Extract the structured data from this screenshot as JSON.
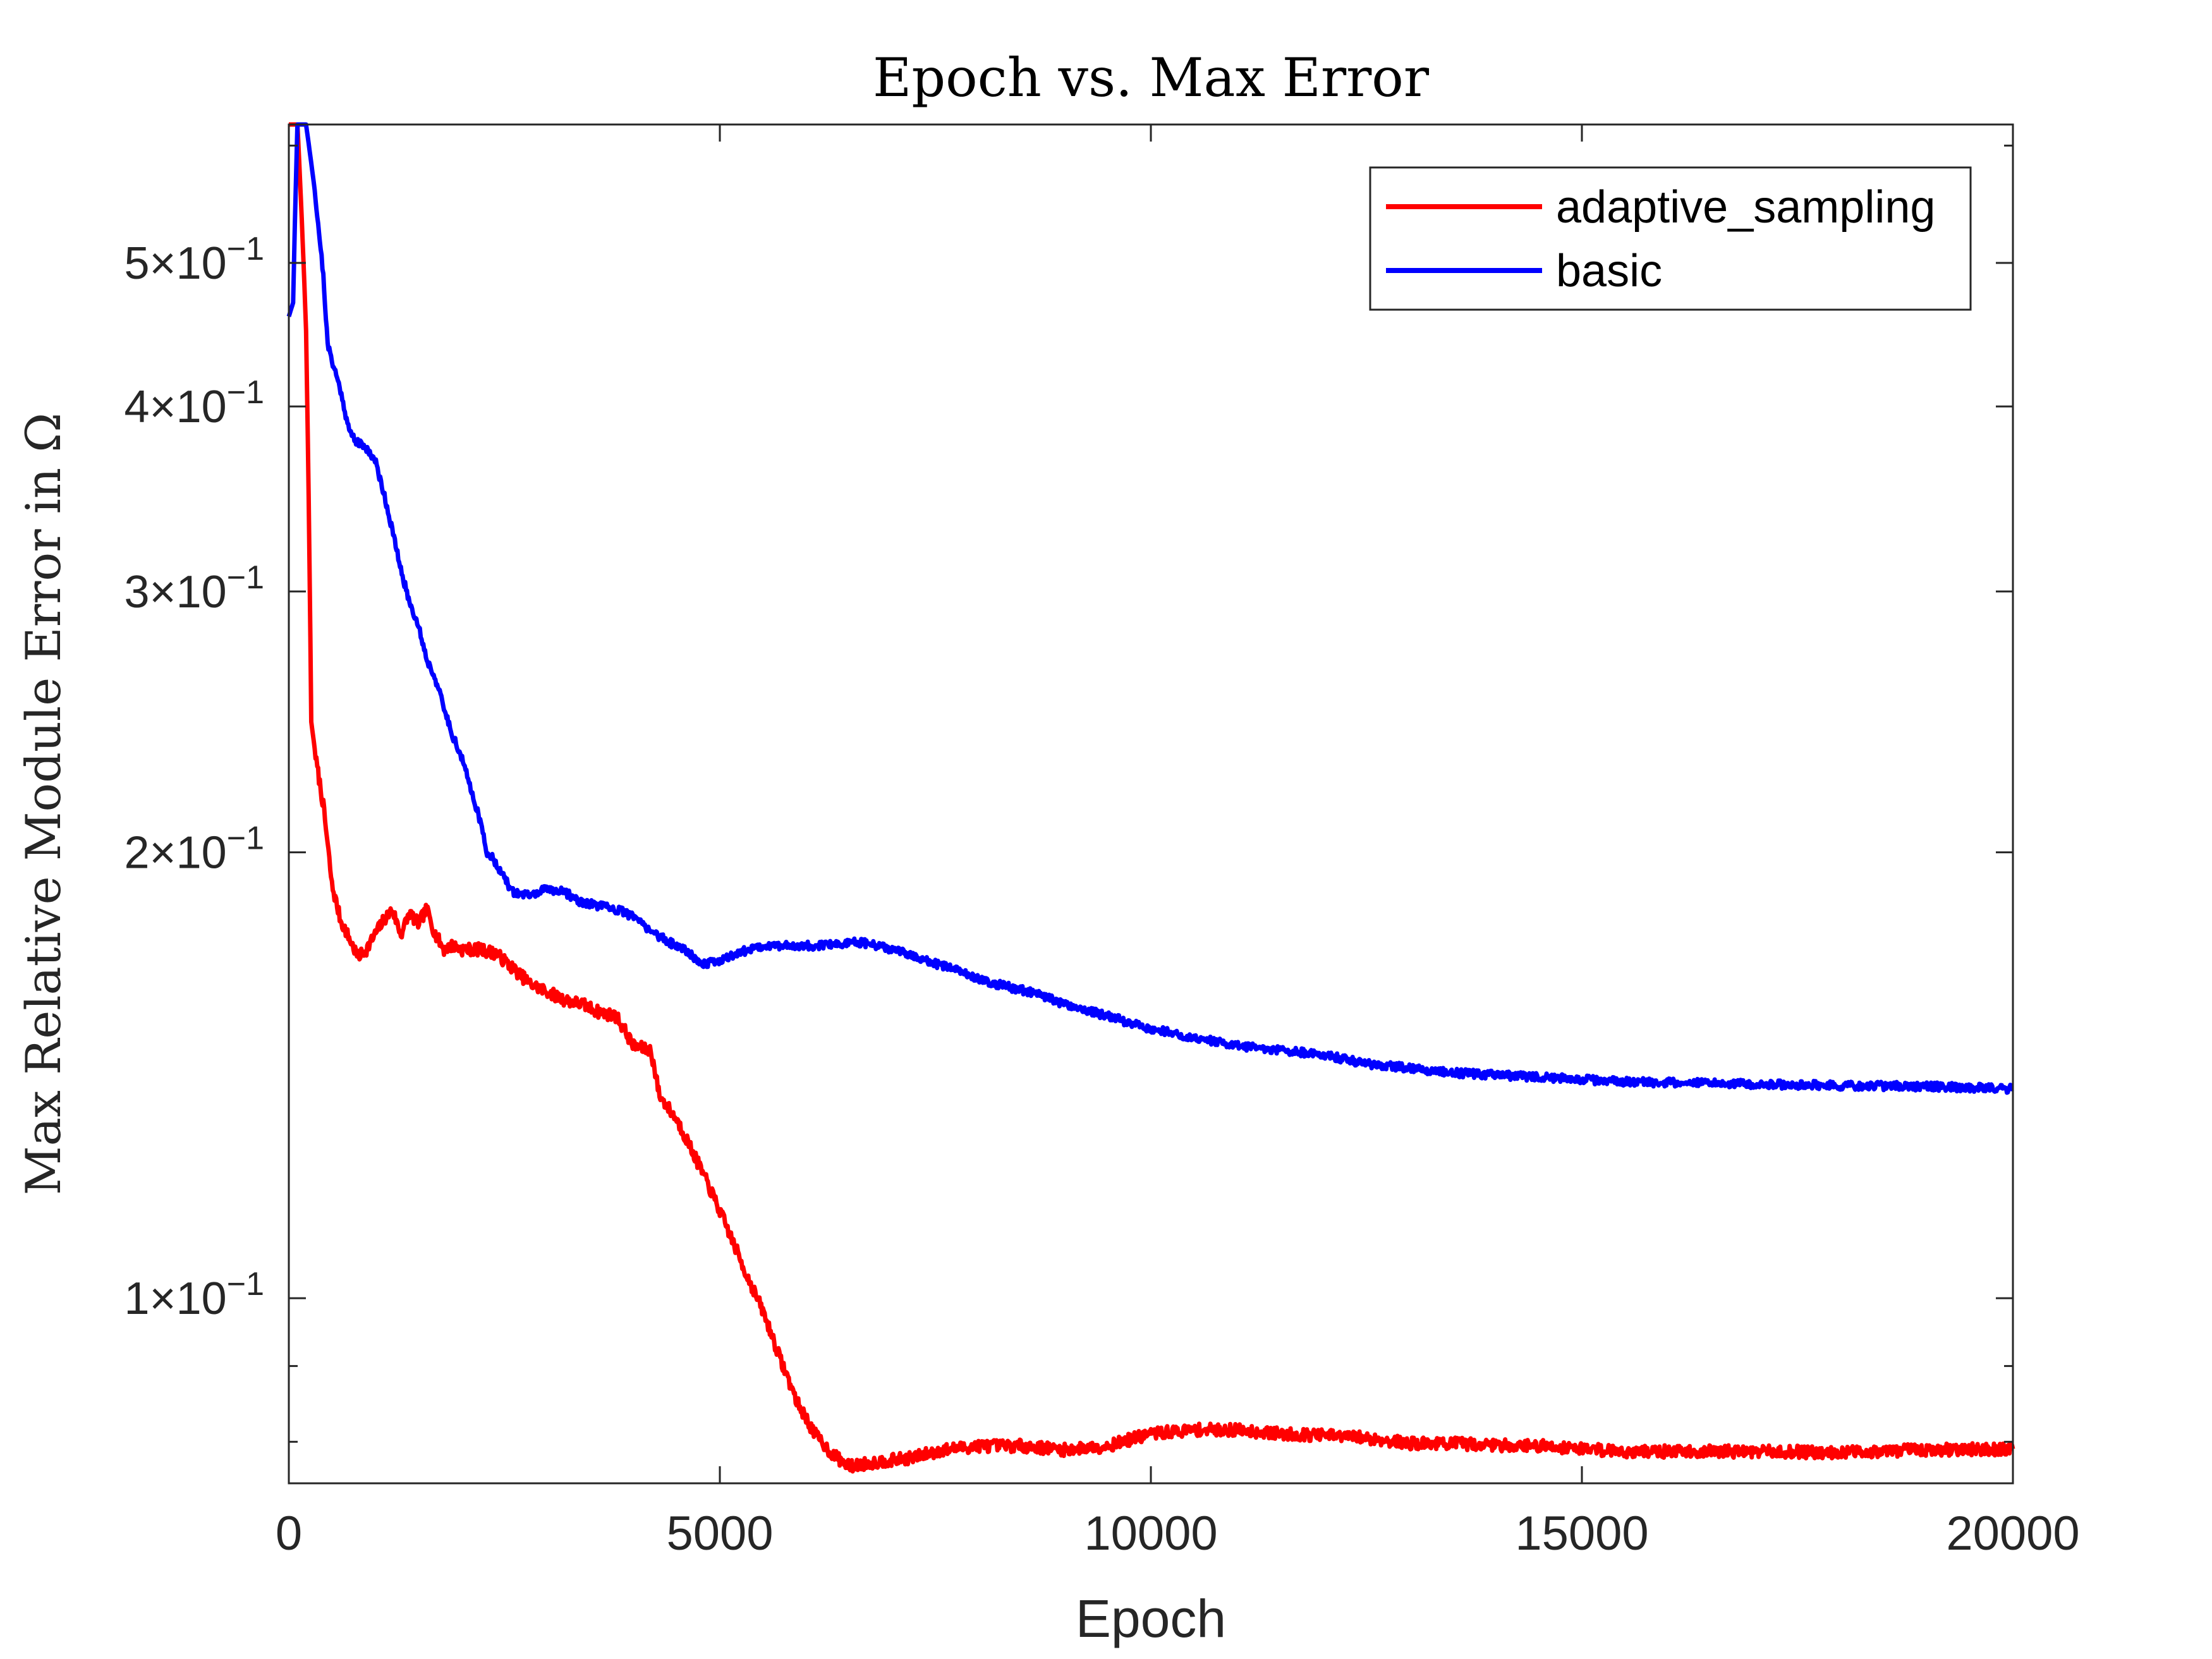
{
  "chart_data": {
    "type": "line",
    "title": "Epoch vs. Max Error",
    "xlabel": "Epoch",
    "ylabel": "Max Relative Module Error in Ω",
    "xlim": [
      0,
      20000
    ],
    "ylim": [
      0.075,
      0.62
    ],
    "yscale": "log",
    "grid": false,
    "legend_position": "top-right",
    "x_ticks": [
      {
        "value": 0,
        "label": "0"
      },
      {
        "value": 5000,
        "label": "5000"
      },
      {
        "value": 10000,
        "label": "10000"
      },
      {
        "value": 15000,
        "label": "15000"
      },
      {
        "value": 20000,
        "label": "20000"
      }
    ],
    "y_ticks": [
      {
        "value": 0.1,
        "mantissa": "1",
        "exp": "−1"
      },
      {
        "value": 0.2,
        "mantissa": "2",
        "exp": "−1"
      },
      {
        "value": 0.3,
        "mantissa": "3",
        "exp": "−1"
      },
      {
        "value": 0.4,
        "mantissa": "4",
        "exp": "−1"
      },
      {
        "value": 0.5,
        "mantissa": "5",
        "exp": "−1"
      }
    ],
    "y_minor_ticks": [
      0.08,
      0.09,
      0.6
    ],
    "series": [
      {
        "name": "adaptive_sampling",
        "color": "#ff0000",
        "noise": 0.006,
        "seed": 7,
        "points": [
          [
            0,
            0.62
          ],
          [
            100,
            0.62
          ],
          [
            200,
            0.45
          ],
          [
            260,
            0.245
          ],
          [
            320,
            0.23
          ],
          [
            400,
            0.215
          ],
          [
            500,
            0.19
          ],
          [
            600,
            0.18
          ],
          [
            700,
            0.175
          ],
          [
            800,
            0.17
          ],
          [
            900,
            0.172
          ],
          [
            1000,
            0.176
          ],
          [
            1100,
            0.18
          ],
          [
            1200,
            0.183
          ],
          [
            1300,
            0.176
          ],
          [
            1400,
            0.182
          ],
          [
            1500,
            0.179
          ],
          [
            1600,
            0.183
          ],
          [
            1700,
            0.176
          ],
          [
            1800,
            0.172
          ],
          [
            1900,
            0.173
          ],
          [
            2000,
            0.172
          ],
          [
            2200,
            0.172
          ],
          [
            2400,
            0.171
          ],
          [
            2600,
            0.167
          ],
          [
            2800,
            0.163
          ],
          [
            3000,
            0.161
          ],
          [
            3200,
            0.159
          ],
          [
            3400,
            0.158
          ],
          [
            3600,
            0.156
          ],
          [
            3800,
            0.155
          ],
          [
            4000,
            0.148
          ],
          [
            4200,
            0.147
          ],
          [
            4300,
            0.137
          ],
          [
            4500,
            0.132
          ],
          [
            4700,
            0.125
          ],
          [
            4900,
            0.118
          ],
          [
            5100,
            0.111
          ],
          [
            5300,
            0.104
          ],
          [
            5500,
            0.098
          ],
          [
            5700,
            0.091
          ],
          [
            5900,
            0.085
          ],
          [
            6100,
            0.081
          ],
          [
            6300,
            0.0785
          ],
          [
            6500,
            0.077
          ],
          [
            6800,
            0.0775
          ],
          [
            7200,
            0.078
          ],
          [
            7600,
            0.079
          ],
          [
            8000,
            0.0795
          ],
          [
            8500,
            0.0795
          ],
          [
            9000,
            0.079
          ],
          [
            9500,
            0.0795
          ],
          [
            10000,
            0.081
          ],
          [
            10500,
            0.0815
          ],
          [
            11000,
            0.0815
          ],
          [
            11500,
            0.081
          ],
          [
            12000,
            0.0808
          ],
          [
            12500,
            0.0805
          ],
          [
            13000,
            0.0798
          ],
          [
            13500,
            0.0798
          ],
          [
            14000,
            0.0796
          ],
          [
            14500,
            0.0795
          ],
          [
            15000,
            0.0792
          ],
          [
            15500,
            0.0788
          ],
          [
            16000,
            0.0788
          ],
          [
            17000,
            0.0788
          ],
          [
            18000,
            0.0787
          ],
          [
            19000,
            0.079
          ],
          [
            20000,
            0.0791
          ]
        ]
      },
      {
        "name": "basic",
        "color": "#0000ff",
        "noise": 0.004,
        "seed": 21,
        "points": [
          [
            0,
            0.46
          ],
          [
            50,
            0.47
          ],
          [
            100,
            0.62
          ],
          [
            200,
            0.62
          ],
          [
            300,
            0.56
          ],
          [
            400,
            0.49
          ],
          [
            450,
            0.44
          ],
          [
            500,
            0.43
          ],
          [
            600,
            0.41
          ],
          [
            700,
            0.385
          ],
          [
            800,
            0.378
          ],
          [
            900,
            0.375
          ],
          [
            1000,
            0.368
          ],
          [
            1100,
            0.35
          ],
          [
            1200,
            0.33
          ],
          [
            1300,
            0.31
          ],
          [
            1400,
            0.295
          ],
          [
            1500,
            0.285
          ],
          [
            1600,
            0.27
          ],
          [
            1700,
            0.262
          ],
          [
            1800,
            0.25
          ],
          [
            1900,
            0.24
          ],
          [
            2000,
            0.232
          ],
          [
            2100,
            0.222
          ],
          [
            2200,
            0.212
          ],
          [
            2300,
            0.2
          ],
          [
            2400,
            0.197
          ],
          [
            2500,
            0.192
          ],
          [
            2600,
            0.188
          ],
          [
            2800,
            0.187
          ],
          [
            3000,
            0.189
          ],
          [
            3200,
            0.188
          ],
          [
            3400,
            0.185
          ],
          [
            3600,
            0.184
          ],
          [
            3800,
            0.183
          ],
          [
            4000,
            0.181
          ],
          [
            4200,
            0.177
          ],
          [
            4400,
            0.174
          ],
          [
            4600,
            0.172
          ],
          [
            4800,
            0.168
          ],
          [
            5000,
            0.169
          ],
          [
            5200,
            0.171
          ],
          [
            5500,
            0.173
          ],
          [
            5800,
            0.173
          ],
          [
            6200,
            0.173
          ],
          [
            6600,
            0.174
          ],
          [
            7000,
            0.172
          ],
          [
            7400,
            0.169
          ],
          [
            7800,
            0.166
          ],
          [
            8200,
            0.163
          ],
          [
            8600,
            0.161
          ],
          [
            9000,
            0.158
          ],
          [
            9500,
            0.155
          ],
          [
            10000,
            0.152
          ],
          [
            10500,
            0.15
          ],
          [
            11000,
            0.148
          ],
          [
            11500,
            0.147
          ],
          [
            12000,
            0.146
          ],
          [
            12500,
            0.144
          ],
          [
            13000,
            0.143
          ],
          [
            13500,
            0.142
          ],
          [
            14000,
            0.1415
          ],
          [
            14500,
            0.141
          ],
          [
            15000,
            0.1405
          ],
          [
            15500,
            0.14
          ],
          [
            16000,
            0.1398
          ],
          [
            17000,
            0.1395
          ],
          [
            18000,
            0.1392
          ],
          [
            19000,
            0.139
          ],
          [
            20000,
            0.1385
          ]
        ]
      }
    ]
  }
}
